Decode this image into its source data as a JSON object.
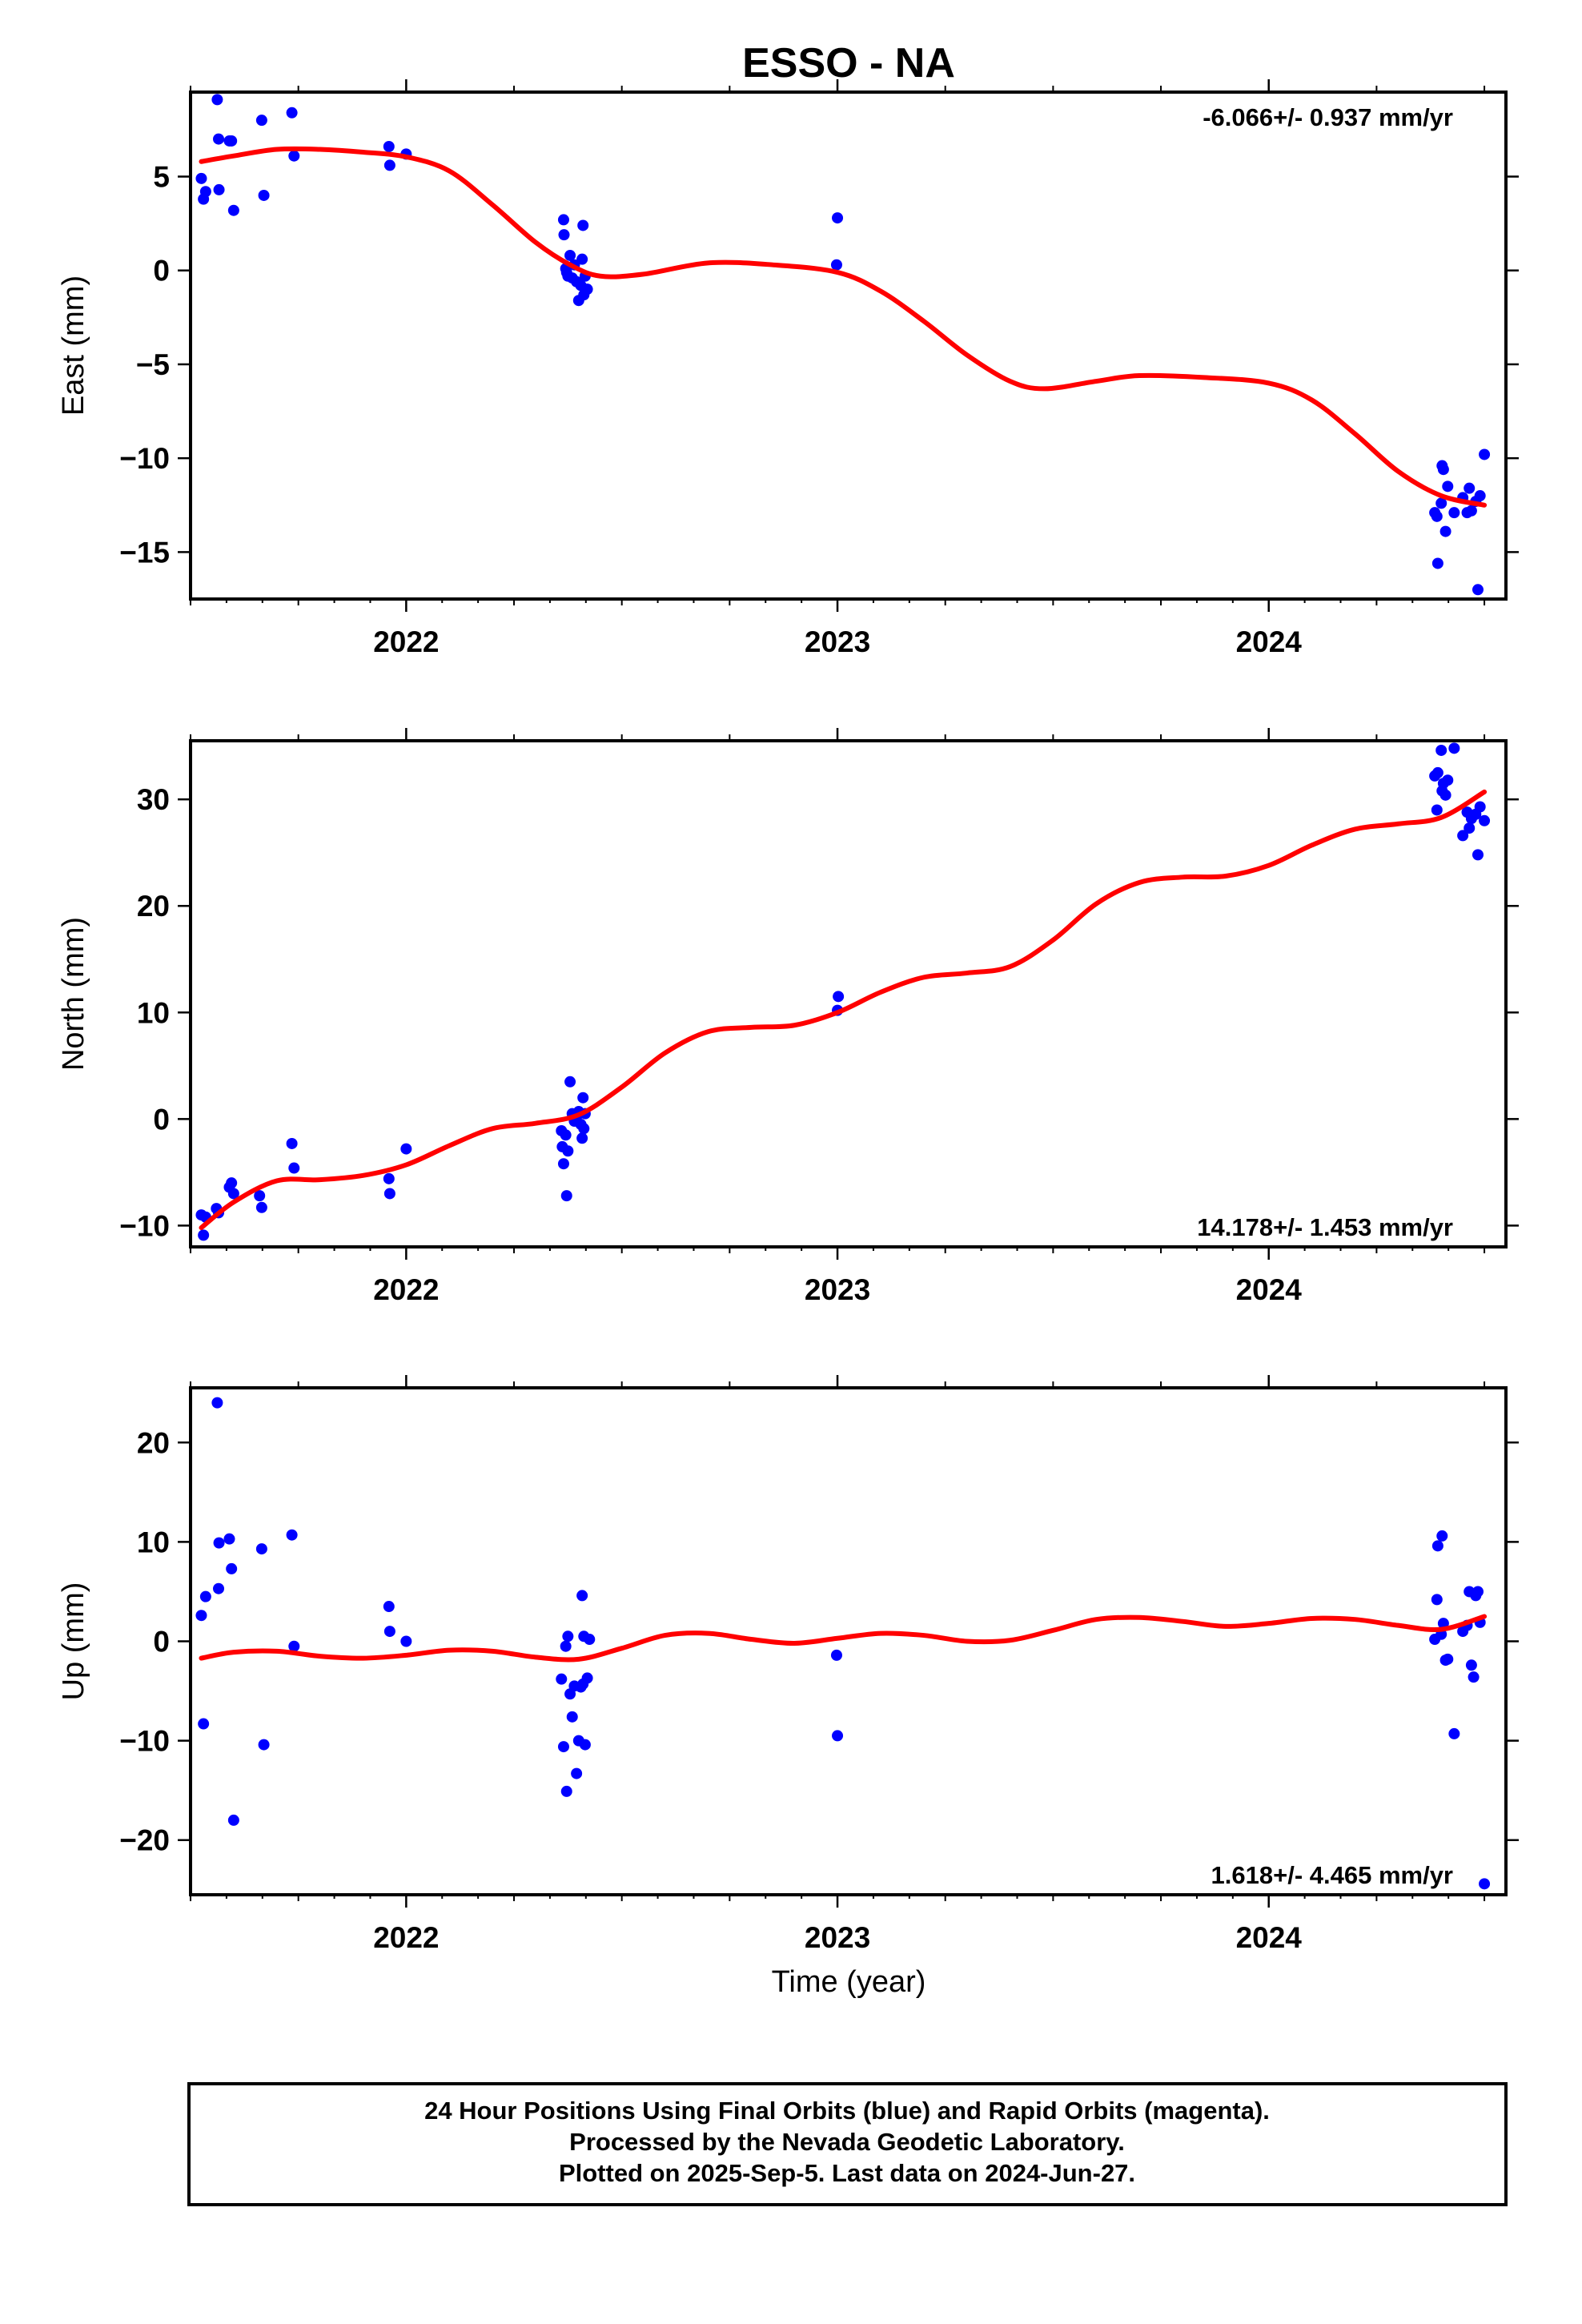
{
  "title": "ESSO - NA",
  "xlabel": "Time (year)",
  "colors": {
    "points": "#0000ff",
    "fit": "#ff0000",
    "frame": "#000000"
  },
  "footer": {
    "lines": [
      "24 Hour Positions Using Final Orbits (blue) and Rapid Orbits (magenta).",
      "Processed by the Nevada Geodetic Laboratory.",
      "Plotted on 2025-Sep-5. Last data on 2024-Jun-27."
    ]
  },
  "chart_data": [
    {
      "type": "scatter",
      "name": "east",
      "ylabel": "East (mm)",
      "rate": "-6.066+/- 0.937 mm/yr",
      "rate_position": "top-right",
      "xlim": [
        2021.5,
        2024.55
      ],
      "ylim": [
        -17.5,
        9.5
      ],
      "xticks": [
        2022,
        2023,
        2024
      ],
      "xtick_labels": [
        "2022",
        "2023",
        "2024"
      ],
      "yticks": [
        5,
        0,
        -5,
        -10,
        -15
      ],
      "ytick_labels": [
        "5",
        "0",
        "−5",
        "−10",
        "−15"
      ],
      "points": [
        [
          2021.525,
          4.9
        ],
        [
          2021.53,
          3.8
        ],
        [
          2021.535,
          4.2
        ],
        [
          2021.562,
          9.1
        ],
        [
          2021.565,
          7.0
        ],
        [
          2021.566,
          4.3
        ],
        [
          2021.59,
          6.9
        ],
        [
          2021.595,
          6.9
        ],
        [
          2021.6,
          3.2
        ],
        [
          2021.665,
          8.0
        ],
        [
          2021.67,
          4.0
        ],
        [
          2021.735,
          8.4
        ],
        [
          2021.74,
          6.1
        ],
        [
          2021.96,
          6.6
        ],
        [
          2021.962,
          5.6
        ],
        [
          2022.0,
          6.2
        ],
        [
          2022.365,
          2.7
        ],
        [
          2022.366,
          1.9
        ],
        [
          2022.37,
          0.1
        ],
        [
          2022.372,
          -0.1
        ],
        [
          2022.375,
          -0.3
        ],
        [
          2022.38,
          0.8
        ],
        [
          2022.385,
          -0.4
        ],
        [
          2022.39,
          0.3
        ],
        [
          2022.395,
          -0.6
        ],
        [
          2022.4,
          -1.6
        ],
        [
          2022.405,
          -0.8
        ],
        [
          2022.408,
          0.6
        ],
        [
          2022.41,
          2.4
        ],
        [
          2022.412,
          -1.3
        ],
        [
          2022.415,
          -0.3
        ],
        [
          2022.42,
          -1.0
        ],
        [
          2022.998,
          0.3
        ],
        [
          2023.0,
          2.8
        ],
        [
          2024.385,
          -12.9
        ],
        [
          2024.39,
          -13.1
        ],
        [
          2024.392,
          -15.6
        ],
        [
          2024.4,
          -12.4
        ],
        [
          2024.402,
          -10.4
        ],
        [
          2024.405,
          -10.6
        ],
        [
          2024.41,
          -13.9
        ],
        [
          2024.415,
          -11.5
        ],
        [
          2024.43,
          -12.9
        ],
        [
          2024.45,
          -12.1
        ],
        [
          2024.46,
          -12.9
        ],
        [
          2024.465,
          -11.6
        ],
        [
          2024.47,
          -12.8
        ],
        [
          2024.48,
          -12.3
        ],
        [
          2024.485,
          -17.0
        ],
        [
          2024.49,
          -12.0
        ],
        [
          2024.5,
          -9.8
        ]
      ],
      "fit": [
        [
          2021.525,
          5.8
        ],
        [
          2021.6,
          6.1
        ],
        [
          2021.7,
          6.45
        ],
        [
          2021.8,
          6.45
        ],
        [
          2021.9,
          6.3
        ],
        [
          2022.0,
          6.05
        ],
        [
          2022.1,
          5.3
        ],
        [
          2022.2,
          3.5
        ],
        [
          2022.3,
          1.5
        ],
        [
          2022.38,
          0.3
        ],
        [
          2022.45,
          -0.3
        ],
        [
          2022.55,
          -0.2
        ],
        [
          2022.7,
          0.4
        ],
        [
          2022.85,
          0.3
        ],
        [
          2023.0,
          -0.1
        ],
        [
          2023.1,
          -1.1
        ],
        [
          2023.2,
          -2.7
        ],
        [
          2023.3,
          -4.5
        ],
        [
          2023.4,
          -5.9
        ],
        [
          2023.48,
          -6.3
        ],
        [
          2023.6,
          -5.9
        ],
        [
          2023.7,
          -5.6
        ],
        [
          2023.85,
          -5.7
        ],
        [
          2024.0,
          -6.0
        ],
        [
          2024.1,
          -6.9
        ],
        [
          2024.2,
          -8.7
        ],
        [
          2024.3,
          -10.7
        ],
        [
          2024.4,
          -12.0
        ],
        [
          2024.5,
          -12.5
        ]
      ]
    },
    {
      "type": "scatter",
      "name": "north",
      "ylabel": "North (mm)",
      "rate": "14.178+/- 1.453 mm/yr",
      "rate_position": "bottom-right",
      "xlim": [
        2021.5,
        2024.55
      ],
      "ylim": [
        -12,
        35.5
      ],
      "xticks": [
        2022,
        2023,
        2024
      ],
      "xtick_labels": [
        "2022",
        "2023",
        "2024"
      ],
      "yticks": [
        30,
        20,
        10,
        0,
        -10
      ],
      "ytick_labels": [
        "30",
        "20",
        "10",
        "0",
        "−10"
      ],
      "points": [
        [
          2021.525,
          -9.0
        ],
        [
          2021.53,
          -10.9
        ],
        [
          2021.535,
          -9.2
        ],
        [
          2021.56,
          -8.4
        ],
        [
          2021.565,
          -8.8
        ],
        [
          2021.59,
          -6.4
        ],
        [
          2021.595,
          -6.0
        ],
        [
          2021.6,
          -7.0
        ],
        [
          2021.66,
          -7.2
        ],
        [
          2021.665,
          -8.3
        ],
        [
          2021.735,
          -2.3
        ],
        [
          2021.74,
          -4.6
        ],
        [
          2021.96,
          -5.6
        ],
        [
          2021.962,
          -7.0
        ],
        [
          2022.0,
          -2.8
        ],
        [
          2022.36,
          -1.1
        ],
        [
          2022.362,
          -2.6
        ],
        [
          2022.365,
          -4.2
        ],
        [
          2022.37,
          -1.5
        ],
        [
          2022.372,
          -7.2
        ],
        [
          2022.375,
          -3.0
        ],
        [
          2022.38,
          3.5
        ],
        [
          2022.385,
          0.5
        ],
        [
          2022.39,
          -0.2
        ],
        [
          2022.395,
          0.2
        ],
        [
          2022.4,
          0.7
        ],
        [
          2022.405,
          -0.5
        ],
        [
          2022.408,
          -1.8
        ],
        [
          2022.41,
          2.0
        ],
        [
          2022.412,
          -0.9
        ],
        [
          2022.415,
          0.5
        ],
        [
          2023.0,
          10.2
        ],
        [
          2023.002,
          11.5
        ],
        [
          2024.385,
          32.2
        ],
        [
          2024.39,
          29.0
        ],
        [
          2024.392,
          32.5
        ],
        [
          2024.4,
          34.6
        ],
        [
          2024.402,
          30.8
        ],
        [
          2024.405,
          31.5
        ],
        [
          2024.41,
          30.4
        ],
        [
          2024.415,
          31.8
        ],
        [
          2024.43,
          34.8
        ],
        [
          2024.45,
          26.6
        ],
        [
          2024.46,
          28.8
        ],
        [
          2024.465,
          27.3
        ],
        [
          2024.47,
          28.2
        ],
        [
          2024.48,
          28.6
        ],
        [
          2024.485,
          24.8
        ],
        [
          2024.49,
          29.3
        ],
        [
          2024.5,
          28.0
        ]
      ],
      "fit": [
        [
          2021.525,
          -10.2
        ],
        [
          2021.6,
          -7.8
        ],
        [
          2021.7,
          -5.8
        ],
        [
          2021.8,
          -5.7
        ],
        [
          2021.9,
          -5.3
        ],
        [
          2022.0,
          -4.3
        ],
        [
          2022.1,
          -2.5
        ],
        [
          2022.2,
          -0.9
        ],
        [
          2022.3,
          -0.4
        ],
        [
          2022.4,
          0.4
        ],
        [
          2022.5,
          3.0
        ],
        [
          2022.6,
          6.2
        ],
        [
          2022.7,
          8.2
        ],
        [
          2022.8,
          8.6
        ],
        [
          2022.9,
          8.8
        ],
        [
          2023.0,
          10.0
        ],
        [
          2023.1,
          11.9
        ],
        [
          2023.2,
          13.3
        ],
        [
          2023.3,
          13.7
        ],
        [
          2023.4,
          14.3
        ],
        [
          2023.5,
          16.8
        ],
        [
          2023.6,
          20.2
        ],
        [
          2023.7,
          22.2
        ],
        [
          2023.8,
          22.7
        ],
        [
          2023.9,
          22.8
        ],
        [
          2024.0,
          23.8
        ],
        [
          2024.1,
          25.7
        ],
        [
          2024.2,
          27.2
        ],
        [
          2024.3,
          27.7
        ],
        [
          2024.4,
          28.3
        ],
        [
          2024.5,
          30.7
        ]
      ]
    },
    {
      "type": "scatter",
      "name": "up",
      "ylabel": "Up (mm)",
      "rate": "1.618+/- 4.465 mm/yr",
      "rate_position": "bottom-right",
      "xlim": [
        2021.5,
        2024.55
      ],
      "ylim": [
        -25.5,
        25.5
      ],
      "xticks": [
        2022,
        2023,
        2024
      ],
      "xtick_labels": [
        "2022",
        "2023",
        "2024"
      ],
      "yticks": [
        20,
        10,
        0,
        -10,
        -20
      ],
      "ytick_labels": [
        "20",
        "10",
        "0",
        "−10",
        "−20"
      ],
      "points": [
        [
          2021.525,
          2.6
        ],
        [
          2021.53,
          -8.3
        ],
        [
          2021.535,
          4.5
        ],
        [
          2021.562,
          24.0
        ],
        [
          2021.565,
          5.3
        ],
        [
          2021.566,
          9.9
        ],
        [
          2021.59,
          10.3
        ],
        [
          2021.595,
          7.3
        ],
        [
          2021.6,
          -18.0
        ],
        [
          2021.665,
          9.3
        ],
        [
          2021.67,
          -10.4
        ],
        [
          2021.735,
          10.7
        ],
        [
          2021.74,
          -0.5
        ],
        [
          2021.96,
          3.5
        ],
        [
          2021.962,
          1.0
        ],
        [
          2022.0,
          0.0
        ],
        [
          2022.36,
          -3.8
        ],
        [
          2022.365,
          -10.6
        ],
        [
          2022.37,
          -0.5
        ],
        [
          2022.372,
          -15.1
        ],
        [
          2022.375,
          0.5
        ],
        [
          2022.38,
          -5.3
        ],
        [
          2022.385,
          -7.6
        ],
        [
          2022.39,
          -4.5
        ],
        [
          2022.395,
          -13.3
        ],
        [
          2022.4,
          -10.0
        ],
        [
          2022.405,
          -4.6
        ],
        [
          2022.408,
          4.6
        ],
        [
          2022.41,
          -4.3
        ],
        [
          2022.412,
          0.5
        ],
        [
          2022.415,
          -10.4
        ],
        [
          2022.42,
          -3.7
        ],
        [
          2022.425,
          0.2
        ],
        [
          2022.998,
          -1.4
        ],
        [
          2023.0,
          -9.5
        ],
        [
          2024.385,
          0.2
        ],
        [
          2024.39,
          4.2
        ],
        [
          2024.392,
          9.6
        ],
        [
          2024.4,
          0.7
        ],
        [
          2024.402,
          10.6
        ],
        [
          2024.405,
          1.8
        ],
        [
          2024.41,
          -1.9
        ],
        [
          2024.415,
          -1.8
        ],
        [
          2024.43,
          -9.3
        ],
        [
          2024.45,
          1.0
        ],
        [
          2024.46,
          1.6
        ],
        [
          2024.465,
          5.0
        ],
        [
          2024.47,
          -2.4
        ],
        [
          2024.475,
          -3.6
        ],
        [
          2024.48,
          4.6
        ],
        [
          2024.485,
          5.0
        ],
        [
          2024.49,
          1.9
        ],
        [
          2024.5,
          -24.4
        ]
      ],
      "fit": [
        [
          2021.525,
          -1.7
        ],
        [
          2021.6,
          -1.1
        ],
        [
          2021.7,
          -1.0
        ],
        [
          2021.8,
          -1.5
        ],
        [
          2021.9,
          -1.7
        ],
        [
          2022.0,
          -1.4
        ],
        [
          2022.1,
          -0.9
        ],
        [
          2022.2,
          -1.0
        ],
        [
          2022.3,
          -1.6
        ],
        [
          2022.4,
          -1.8
        ],
        [
          2022.5,
          -0.7
        ],
        [
          2022.6,
          0.6
        ],
        [
          2022.7,
          0.8
        ],
        [
          2022.8,
          0.2
        ],
        [
          2022.9,
          -0.2
        ],
        [
          2023.0,
          0.3
        ],
        [
          2023.1,
          0.8
        ],
        [
          2023.2,
          0.6
        ],
        [
          2023.3,
          0.0
        ],
        [
          2023.4,
          0.1
        ],
        [
          2023.5,
          1.1
        ],
        [
          2023.6,
          2.2
        ],
        [
          2023.7,
          2.4
        ],
        [
          2023.8,
          2.0
        ],
        [
          2023.9,
          1.5
        ],
        [
          2024.0,
          1.8
        ],
        [
          2024.1,
          2.3
        ],
        [
          2024.2,
          2.2
        ],
        [
          2024.3,
          1.6
        ],
        [
          2024.4,
          1.2
        ],
        [
          2024.5,
          2.5
        ]
      ]
    }
  ]
}
